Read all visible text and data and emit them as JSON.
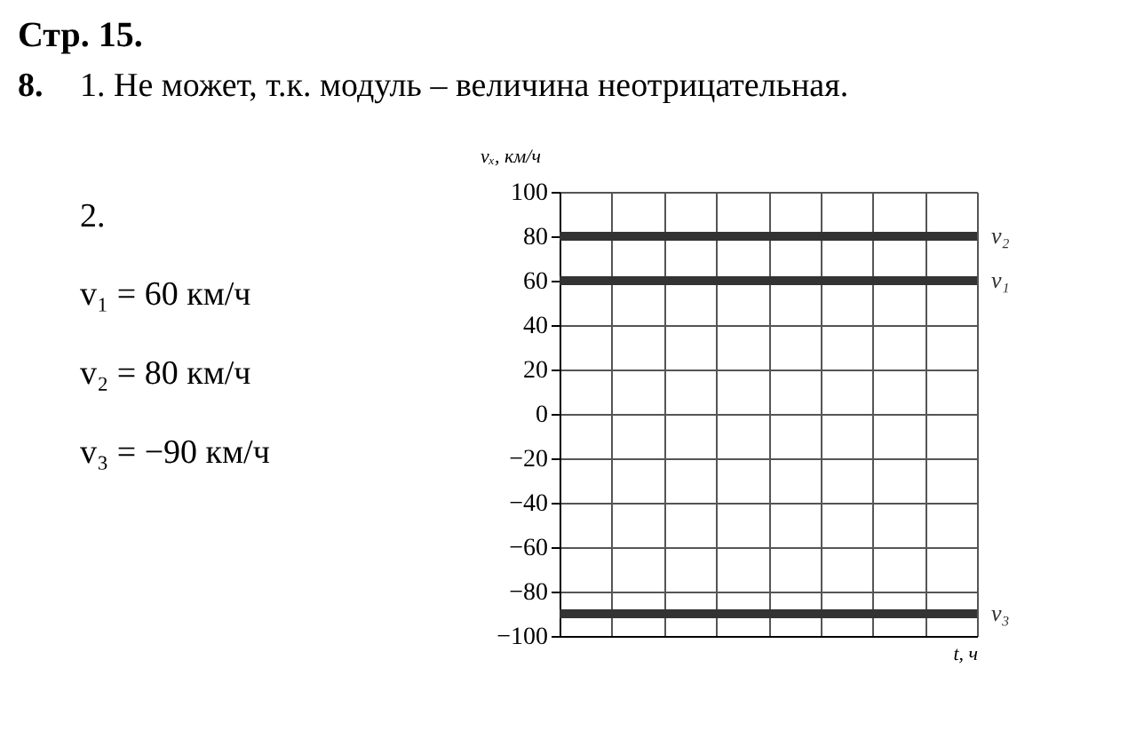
{
  "chart_data": {
    "type": "line",
    "title": "Стр. 15.",
    "annotations": [
      "8.",
      "1. Не может, т.к. модуль – величина неотрицательная.",
      "2.",
      "v₁ = 60 км/ч",
      "v₂ = 80 км/ч",
      "v₃ = −90 км/ч"
    ],
    "xlabel": "t, ч",
    "ylabel": "vₓ, км/ч",
    "categories": [
      null,
      null,
      null,
      null,
      null,
      null,
      null,
      null,
      null
    ],
    "series": [
      {
        "name": "v₁",
        "color": "#333333",
        "values": [
          60,
          60,
          60,
          60,
          60,
          60,
          60,
          60,
          60
        ]
      },
      {
        "name": "v₂",
        "color": "#333333",
        "values": [
          80,
          80,
          80,
          80,
          80,
          80,
          80,
          80,
          80
        ]
      },
      {
        "name": "v₃",
        "color": "#333333",
        "values": [
          -90,
          -90,
          -90,
          -90,
          -90,
          -90,
          -90,
          -90,
          -90
        ]
      }
    ],
    "ylim": [
      -100,
      100
    ],
    "yticks": [
      -100,
      -80,
      -60,
      -40,
      -20,
      0,
      20,
      40,
      60,
      80,
      100
    ],
    "grid": true,
    "marker": "none",
    "line_style": "solid"
  }
}
